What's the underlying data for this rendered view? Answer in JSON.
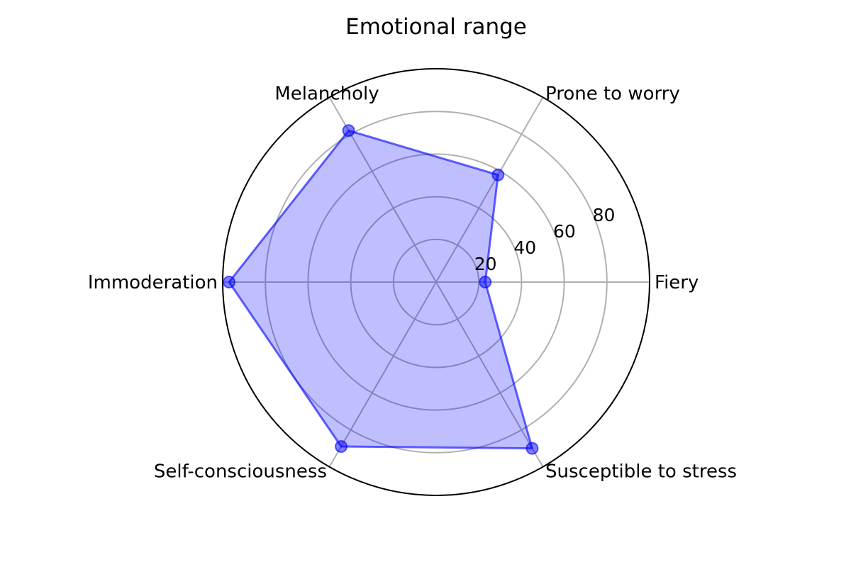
{
  "chart_data": {
    "type": "radar",
    "title": "Emotional range",
    "categories": [
      "Fiery",
      "Prone to worry",
      "Melancholy",
      "Immoderation",
      "Self-consciousness",
      "Susceptible to stress"
    ],
    "values": [
      23,
      58,
      82,
      97,
      89,
      90
    ],
    "rlim": [
      0,
      100
    ],
    "r_ticks": [
      20,
      40,
      60,
      80
    ],
    "r_tick_labels": [
      "20",
      "40",
      "60",
      "80"
    ],
    "grid": true,
    "colors": {
      "fill": "#0000ff",
      "line": "#0000ff",
      "marker": "#0000ff",
      "grid": "#b0b0b0",
      "frame": "#000000"
    }
  }
}
